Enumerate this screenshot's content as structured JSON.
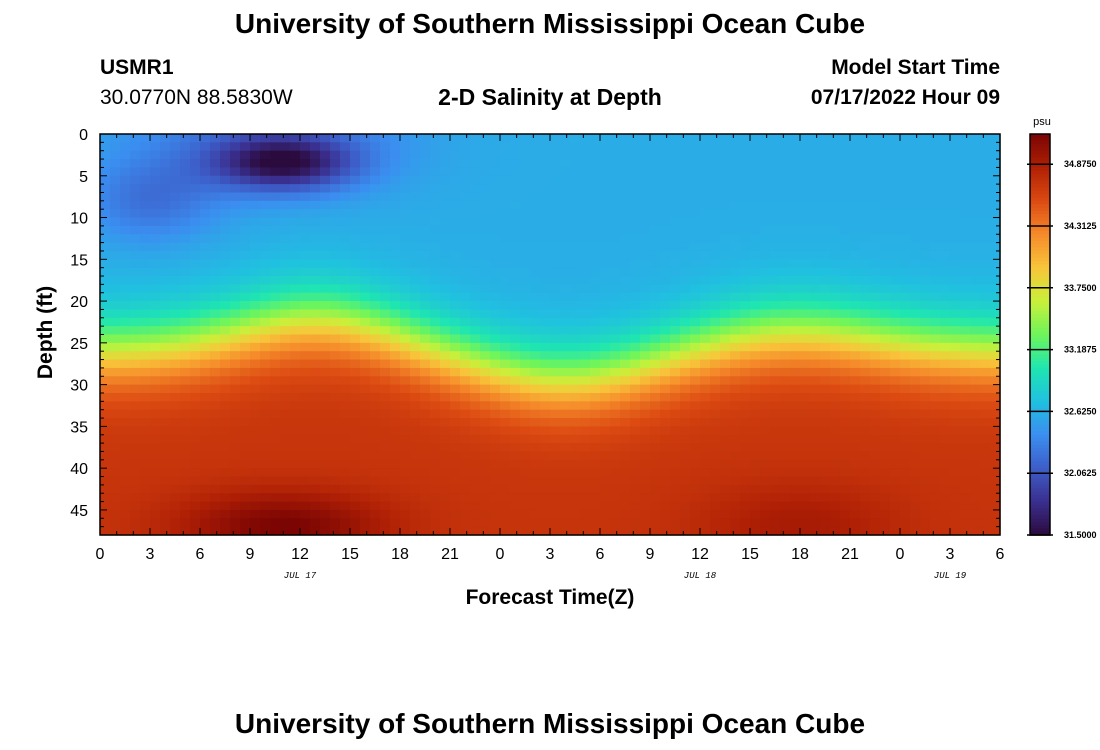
{
  "page": {
    "title": "University of Southern Mississippi Ocean Cube",
    "station_id": "USMR1",
    "coordinates": "30.0770N  88.5830W",
    "plot_title": "2-D Salinity at Depth",
    "model_start_label": "Model Start Time",
    "model_start_value": "07/17/2022 Hour 09",
    "footer_title": "University of Southern Mississippi Ocean Cube"
  },
  "chart_data": {
    "type": "heatmap",
    "title": "2-D Salinity at Depth",
    "xlabel": "Forecast Time(Z)",
    "ylabel": "Depth (ft)",
    "xlim": [
      0,
      54
    ],
    "ylim": [
      48,
      0
    ],
    "x_tick_labels": [
      "0",
      "3",
      "6",
      "9",
      "12",
      "15",
      "18",
      "21",
      "0",
      "3",
      "6",
      "9",
      "12",
      "15",
      "18",
      "21",
      "0",
      "3",
      "6"
    ],
    "y_ticks": [
      0,
      5,
      10,
      15,
      20,
      25,
      30,
      35,
      40,
      45
    ],
    "date_labels": [
      {
        "hour": 12,
        "label": "JUL 17"
      },
      {
        "hour": 36,
        "label": "JUL 18"
      },
      {
        "hour": 51,
        "label": "JUL 19"
      }
    ],
    "colorbar": {
      "unit": "psu",
      "range": [
        31.5,
        35.15
      ],
      "tick_values": [
        34.875,
        34.3125,
        33.75,
        33.1875,
        32.625,
        32.0625,
        31.5
      ],
      "tick_labels": [
        "34.8750",
        "34.3125",
        "33.7500",
        "33.1875",
        "32.6250",
        "32.0625",
        "31.5000"
      ],
      "colormap": [
        "#2b0a3d",
        "#3a2f8f",
        "#3d5ec9",
        "#3b8ef0",
        "#20c0e0",
        "#1fe6b0",
        "#6ff55a",
        "#c9f03a",
        "#f8c53a",
        "#f58a2a",
        "#dc4a12",
        "#b02005",
        "#7a0403"
      ]
    },
    "description_fields": {
      "surface_salinity_psu": 32.3,
      "min_salinity_psu": 31.5,
      "max_salinity_psu": 35.1
    }
  }
}
